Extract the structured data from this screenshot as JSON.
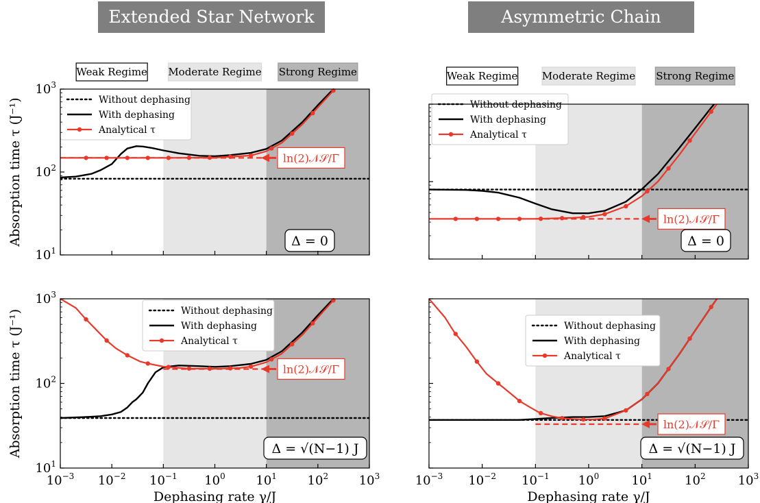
{
  "headers": [
    "Extended Star Network",
    "Asymmetric Chain"
  ],
  "regime_labels": [
    "Weak Regime",
    "Moderate Regime",
    "Strong Regime"
  ],
  "colors": {
    "red": "#e8392b",
    "black": "#000000",
    "moderate_shade": "#e6e6e6",
    "strong_shade": "#b5b5b5",
    "header_bg": "#7f7f7f"
  },
  "ylabel": "Absorption time τ (J⁻¹)",
  "xlabel": "Dephasing rate γ/J",
  "analytic_label": "ln(2)𝒩𝒮/Γ",
  "chart_data": [
    {
      "type": "line",
      "panel": "top-left",
      "x_scale": "log",
      "y_scale": "log",
      "xlim": [
        0.001,
        1000
      ],
      "ylim": [
        10,
        1000
      ],
      "regions": [
        {
          "name": "Weak Regime",
          "x": [
            0.001,
            0.1
          ]
        },
        {
          "name": "Moderate Regime",
          "x": [
            0.1,
            10
          ]
        },
        {
          "name": "Strong Regime",
          "x": [
            10,
            1000
          ]
        }
      ],
      "legend": {
        "position": "top-left",
        "entries": [
          "Without dephasing",
          "With dephasing",
          "Analytical τ"
        ]
      },
      "condition": "Δ = 0",
      "series": [
        {
          "name": "Without dephasing",
          "style": "dotted",
          "x": [
            0.001,
            1000
          ],
          "y": [
            83,
            83
          ]
        },
        {
          "name": "With dephasing",
          "style": "solid",
          "x": [
            0.001,
            0.002,
            0.004,
            0.006,
            0.01,
            0.015,
            0.02,
            0.03,
            0.04,
            0.06,
            0.1,
            0.2,
            0.5,
            1,
            2,
            5,
            10,
            20,
            50,
            100,
            200,
            300
          ],
          "y": [
            86,
            88,
            95,
            105,
            125,
            165,
            192,
            205,
            203,
            195,
            182,
            168,
            157,
            155,
            160,
            170,
            190,
            240,
            400,
            640,
            1000,
            1300
          ]
        },
        {
          "name": "Analytical τ",
          "style": "solid-markers",
          "x": [
            0.001,
            0.01,
            0.1,
            1,
            5,
            10,
            20,
            50,
            100,
            200,
            300
          ],
          "y": [
            148,
            148,
            148,
            149,
            158,
            178,
            225,
            375,
            600,
            960,
            1250
          ],
          "markers_x": [
            0.00316,
            0.00794,
            0.02,
            0.0501,
            0.126,
            0.316,
            0.794,
            2,
            5.01,
            12.6,
            31.6,
            79.4,
            200
          ]
        }
      ],
      "asymptote": {
        "style": "dashed",
        "x": [
          0.001,
          10
        ],
        "y": 148,
        "label": "ln(2)𝒩𝒮/Γ"
      }
    },
    {
      "type": "line",
      "panel": "top-right",
      "x_scale": "log",
      "y_scale": "log",
      "xlim": [
        0.001,
        1000
      ],
      "ylim": [
        10,
        1000
      ],
      "regions": [
        {
          "name": "Weak Regime",
          "x": [
            0.001,
            0.1
          ]
        },
        {
          "name": "Moderate Regime",
          "x": [
            0.1,
            10
          ]
        },
        {
          "name": "Strong Regime",
          "x": [
            10,
            1000
          ]
        }
      ],
      "legend": {
        "position": "top-left",
        "entries": [
          "Without dephasing",
          "With dephasing",
          "Analytical τ"
        ]
      },
      "condition": "Δ = 0",
      "series": [
        {
          "name": "Without dephasing",
          "style": "dotted",
          "x": [
            0.001,
            1000
          ],
          "y": [
            79,
            79
          ]
        },
        {
          "name": "With dephasing",
          "style": "solid",
          "x": [
            0.001,
            0.005,
            0.01,
            0.02,
            0.05,
            0.1,
            0.2,
            0.5,
            1,
            2,
            5,
            10,
            20,
            50,
            100,
            200,
            300
          ],
          "y": [
            79,
            78,
            76,
            72,
            62,
            52,
            44,
            39,
            39,
            42,
            55,
            80,
            125,
            270,
            490,
            900,
            1250
          ]
        },
        {
          "name": "Analytical τ",
          "style": "solid-markers",
          "x": [
            0.001,
            0.1,
            0.5,
            1,
            2,
            5,
            10,
            20,
            50,
            100,
            200,
            300
          ],
          "y": [
            33,
            33,
            34,
            35,
            38,
            48,
            65,
            100,
            220,
            420,
            800,
            1150
          ],
          "markers_x": [
            0.00316,
            0.00794,
            0.02,
            0.0501,
            0.126,
            0.316,
            0.794,
            2,
            5.01,
            12.6,
            31.6,
            79.4,
            200
          ]
        }
      ],
      "asymptote": {
        "style": "dashed",
        "x": [
          0.1,
          10
        ],
        "y": 33,
        "label": "ln(2)𝒩𝒮/Γ"
      }
    },
    {
      "type": "line",
      "panel": "bottom-left",
      "x_scale": "log",
      "y_scale": "log",
      "xlim": [
        0.001,
        1000
      ],
      "ylim": [
        10,
        1000
      ],
      "regions": [
        {
          "name": "Weak Regime",
          "x": [
            0.001,
            0.1
          ]
        },
        {
          "name": "Moderate Regime",
          "x": [
            0.1,
            10
          ]
        },
        {
          "name": "Strong Regime",
          "x": [
            10,
            1000
          ]
        }
      ],
      "legend": {
        "position": "top-center",
        "entries": [
          "Without dephasing",
          "With dephasing",
          "Analytical τ"
        ]
      },
      "condition": "Δ = √(N−1) J",
      "series": [
        {
          "name": "Without dephasing",
          "style": "dotted",
          "x": [
            0.001,
            1000
          ],
          "y": [
            39,
            39
          ]
        },
        {
          "name": "With dephasing",
          "style": "solid",
          "x": [
            0.001,
            0.003,
            0.006,
            0.01,
            0.015,
            0.02,
            0.025,
            0.03,
            0.04,
            0.05,
            0.07,
            0.1,
            0.2,
            0.5,
            1,
            2,
            5,
            10,
            20,
            50,
            100,
            200,
            300
          ],
          "y": [
            39,
            40,
            41,
            43,
            46,
            52,
            60,
            65,
            78,
            100,
            135,
            155,
            163,
            160,
            157,
            160,
            170,
            190,
            240,
            400,
            640,
            1000,
            1300
          ]
        },
        {
          "name": "Analytical τ",
          "style": "solid-markers",
          "x": [
            0.001,
            0.002,
            0.003,
            0.005,
            0.008,
            0.012,
            0.02,
            0.035,
            0.05,
            0.1,
            0.3,
            1,
            3,
            5,
            10,
            20,
            50,
            100,
            200,
            300
          ],
          "y": [
            1000,
            780,
            590,
            430,
            320,
            260,
            215,
            182,
            172,
            158,
            150,
            149,
            152,
            158,
            178,
            225,
            375,
            600,
            960,
            1250
          ],
          "markers_x": [
            0.00316,
            0.00794,
            0.02,
            0.0501,
            0.126,
            0.316,
            0.794,
            2,
            5.01,
            12.6,
            31.6,
            79.4,
            200
          ]
        }
      ],
      "asymptote": {
        "style": "dashed",
        "x": [
          0.1,
          10
        ],
        "y": 148,
        "label": "ln(2)𝒩𝒮/Γ"
      }
    },
    {
      "type": "line",
      "panel": "bottom-right",
      "x_scale": "log",
      "y_scale": "log",
      "xlim": [
        0.001,
        1000
      ],
      "ylim": [
        10,
        1000
      ],
      "regions": [
        {
          "name": "Weak Regime",
          "x": [
            0.001,
            0.1
          ]
        },
        {
          "name": "Moderate Regime",
          "x": [
            0.1,
            10
          ]
        },
        {
          "name": "Strong Regime",
          "x": [
            10,
            1000
          ]
        }
      ],
      "legend": {
        "position": "top-center",
        "entries": [
          "Without dephasing",
          "With dephasing",
          "Analytical τ"
        ]
      },
      "condition": "Δ = √(N−1) J",
      "series": [
        {
          "name": "Without dephasing",
          "style": "dotted",
          "x": [
            0.001,
            1000
          ],
          "y": [
            37,
            37
          ]
        },
        {
          "name": "With dephasing",
          "style": "solid",
          "x": [
            0.001,
            0.05,
            0.1,
            0.2,
            0.5,
            1,
            2,
            5,
            10,
            20,
            50,
            100,
            200,
            300
          ],
          "y": [
            37,
            37,
            38,
            39,
            40,
            40,
            41,
            48,
            65,
            100,
            220,
            420,
            800,
            1150
          ]
        },
        {
          "name": "Analytical τ",
          "style": "solid-markers",
          "x": [
            0.001,
            0.002,
            0.003,
            0.005,
            0.008,
            0.012,
            0.02,
            0.035,
            0.05,
            0.08,
            0.12,
            0.2,
            0.3,
            0.5,
            0.8,
            1.2,
            2,
            5,
            10,
            20,
            50,
            100,
            200,
            300
          ],
          "y": [
            1000,
            600,
            400,
            270,
            180,
            130,
            100,
            75,
            62,
            52,
            45,
            41,
            39,
            38,
            37.5,
            37.5,
            38.5,
            48,
            65,
            100,
            220,
            420,
            800,
            1150
          ],
          "markers_x": [
            0.00316,
            0.00794,
            0.02,
            0.0501,
            0.126,
            0.316,
            0.794,
            2,
            5.01,
            12.6,
            31.6,
            79.4,
            200
          ]
        }
      ],
      "asymptote": {
        "style": "dashed",
        "x": [
          0.1,
          10
        ],
        "y": 33,
        "label": "ln(2)𝒩𝒮/Γ"
      }
    }
  ]
}
